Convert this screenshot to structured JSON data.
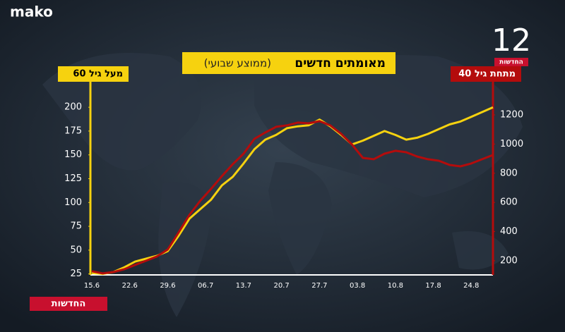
{
  "chart_data": {
    "type": "line",
    "title": "מאומתים חדשים",
    "subtitle": "(ממוצע שבועי)",
    "x": [
      "15.6",
      "17.6",
      "19.6",
      "21.6",
      "23.6",
      "25.6",
      "27.6",
      "29.6",
      "01.7",
      "03.7",
      "05.7",
      "07.7",
      "09.7",
      "11.7",
      "13.7",
      "15.7",
      "17.7",
      "19.7",
      "21.7",
      "23.7",
      "25.7",
      "27.7",
      "29.7",
      "31.7",
      "02.8",
      "04.8",
      "06.8",
      "08.8",
      "10.8",
      "12.8",
      "14.8",
      "16.8",
      "18.8",
      "20.8",
      "22.8",
      "24.8",
      "28.8"
    ],
    "xticks": [
      "15.6",
      "22.6",
      "29.6",
      "06.7",
      "13.7",
      "20.7",
      "27.7",
      "03.8",
      "10.8",
      "17.8",
      "24.8"
    ],
    "series": [
      {
        "name": "מעל גיל 60",
        "color": "#f6d20f",
        "axis": "y",
        "values": [
          26,
          25,
          27,
          32,
          38,
          41,
          44,
          49,
          65,
          83,
          93,
          103,
          118,
          127,
          141,
          156,
          166,
          171,
          178,
          180,
          181,
          187,
          180,
          171,
          161,
          165,
          170,
          175,
          171,
          166,
          168,
          172,
          177,
          182,
          185,
          190,
          200
        ]
      },
      {
        "name": "מתחת גיל 40",
        "color": "#b40c0c",
        "axis": "y2",
        "values": [
          128,
          113,
          123,
          142,
          171,
          200,
          229,
          277,
          393,
          514,
          611,
          693,
          780,
          862,
          934,
          1036,
          1079,
          1118,
          1128,
          1147,
          1142,
          1157,
          1128,
          1070,
          997,
          905,
          896,
          934,
          954,
          944,
          915,
          896,
          886,
          857,
          847,
          867,
          925
        ]
      }
    ],
    "ylim": [
      24,
      209
    ],
    "yticks": [
      25,
      50,
      75,
      100,
      125,
      150,
      175,
      200
    ],
    "y2lim": [
      103,
      1311
    ],
    "y2ticks": [
      200,
      400,
      600,
      800,
      1000,
      1200
    ],
    "logos": {
      "brand": "mako",
      "channel": "12",
      "channel_sub": "החדשות",
      "badge": "החדשות"
    }
  }
}
